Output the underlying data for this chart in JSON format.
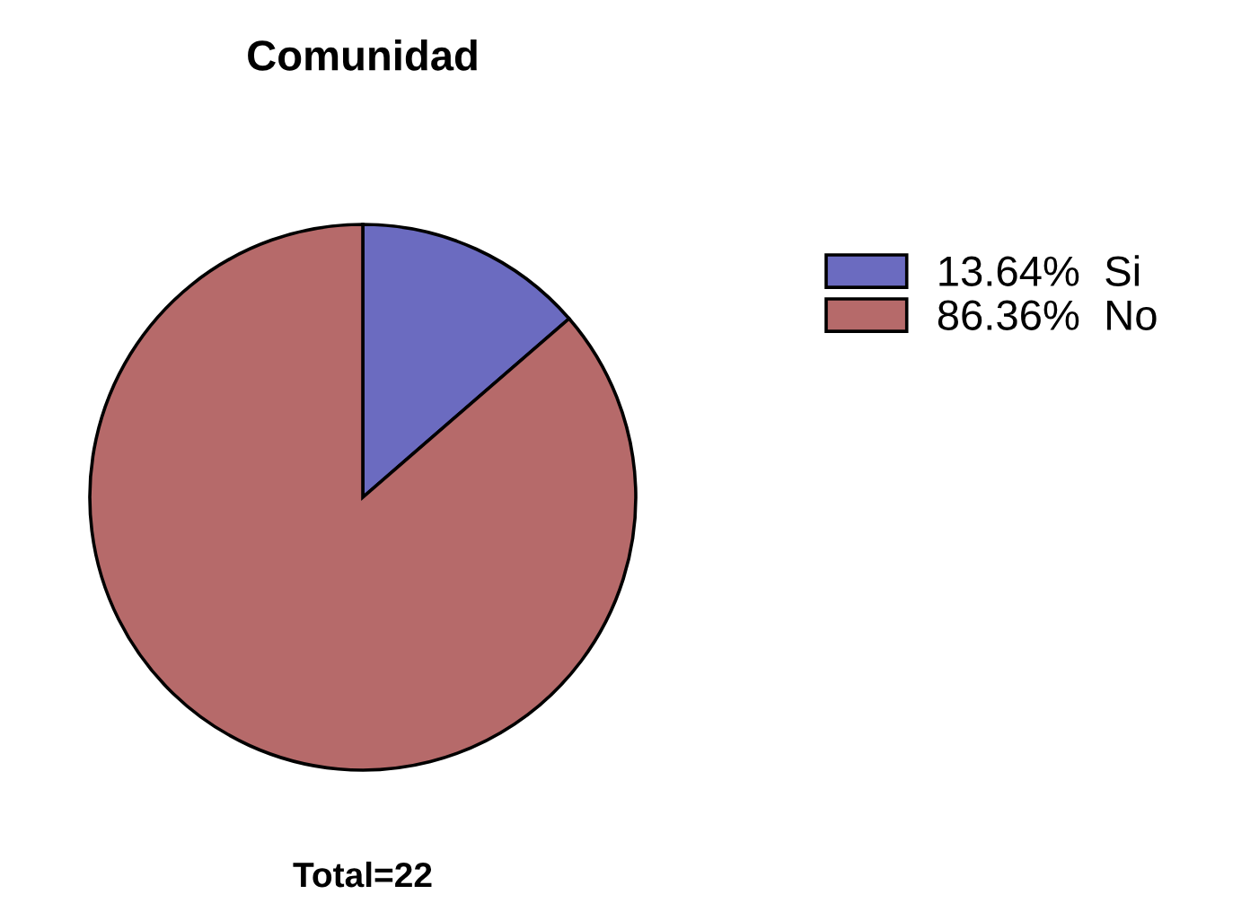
{
  "chart_data": {
    "type": "pie",
    "title": "Comunidad",
    "categories": [
      "Si",
      "No"
    ],
    "values": [
      13.64,
      86.36
    ],
    "colors": [
      "#6b6bc0",
      "#b66a6a"
    ],
    "value_labels": [
      "13.64%",
      "86.36%"
    ],
    "annotations": [
      "Total=22"
    ],
    "legend": "right"
  }
}
